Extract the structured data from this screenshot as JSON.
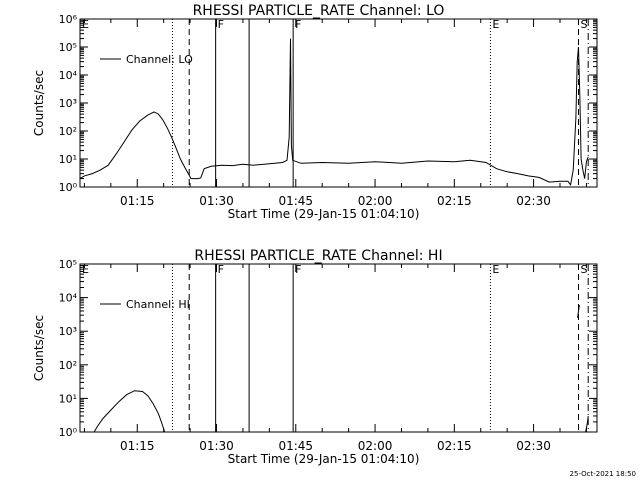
{
  "footer": {
    "timestamp": "25-Oct-2021 18:50"
  },
  "chart_data": [
    {
      "type": "line",
      "title": "RHESSI PARTICLE_RATE Channel: LO",
      "xlabel": "Start Time (29-Jan-15 01:04:10)",
      "ylabel": "Counts/sec",
      "y_scale": "log",
      "ylim": [
        1,
        1000000
      ],
      "y_ticks": [
        {
          "value": 1,
          "label": "10⁰"
        },
        {
          "value": 10,
          "label": "10¹"
        },
        {
          "value": 100,
          "label": "10²"
        },
        {
          "value": 1000,
          "label": "10³"
        },
        {
          "value": 10000,
          "label": "10⁴"
        },
        {
          "value": 100000,
          "label": "10⁵"
        },
        {
          "value": 1000000,
          "label": "10⁶"
        }
      ],
      "xlim": [
        "01:04:10",
        "02:42:00"
      ],
      "x_ticks": [
        "01:15",
        "01:30",
        "01:45",
        "02:00",
        "02:15",
        "02:30"
      ],
      "legend": {
        "label": "Channel: LO",
        "position": "top-left"
      },
      "markers": [
        {
          "time": "01:04:10",
          "style": "dotted",
          "label": "E"
        },
        {
          "time": "01:21:40",
          "style": "dotted",
          "label": ""
        },
        {
          "time": "01:24:50",
          "style": "dashed",
          "label": ""
        },
        {
          "time": "01:29:50",
          "style": "solid",
          "label": "F"
        },
        {
          "time": "01:36:10",
          "style": "solid",
          "label": ""
        },
        {
          "time": "01:44:30",
          "style": "solid",
          "label": "F"
        },
        {
          "time": "02:21:50",
          "style": "dotted",
          "label": "E"
        },
        {
          "time": "02:38:30",
          "style": "dashed",
          "label": "S"
        },
        {
          "time": "02:40:20",
          "style": "dashdot",
          "label": ""
        }
      ],
      "series": [
        {
          "name": "Channel: LO",
          "segments": [
            [
              [
                "01:04:10",
                2.0
              ],
              [
                "01:05:00",
                2.5
              ],
              [
                "01:06:30",
                3.0
              ],
              [
                "01:08:00",
                4.0
              ],
              [
                "01:09:30",
                6.0
              ],
              [
                "01:11:00",
                15
              ],
              [
                "01:12:30",
                40
              ],
              [
                "01:14:00",
                110
              ],
              [
                "01:15:30",
                230
              ],
              [
                "01:17:00",
                370
              ],
              [
                "01:18:10",
                480
              ],
              [
                "01:19:00",
                400
              ],
              [
                "01:19:50",
                250
              ],
              [
                "01:20:40",
                130
              ],
              [
                "01:21:30",
                60
              ],
              [
                "01:22:20",
                25
              ],
              [
                "01:23:10",
                10
              ],
              [
                "01:24:00",
                5.0
              ],
              [
                "01:24:40",
                3.0
              ],
              [
                "01:25:10",
                2.0
              ],
              [
                "01:26:30",
                2.0
              ],
              [
                "01:27:00",
                2.1
              ],
              [
                "01:27:40",
                4.5
              ],
              [
                "01:29:00",
                5.5
              ],
              [
                "01:31:00",
                6.0
              ],
              [
                "01:33:00",
                5.8
              ],
              [
                "01:35:00",
                6.5
              ],
              [
                "01:37:00",
                6.0
              ],
              [
                "01:39:00",
                6.5
              ],
              [
                "01:41:00",
                7.0
              ],
              [
                "01:42:30",
                7.5
              ],
              [
                "01:43:20",
                9.0
              ],
              [
                "01:43:45",
                60
              ],
              [
                "01:44:00",
                200000
              ],
              [
                "01:44:10",
                30
              ],
              [
                "01:44:25",
                9.0
              ],
              [
                "01:46:00",
                7.0
              ],
              [
                "01:50:00",
                7.5
              ],
              [
                "01:55:00",
                7.0
              ],
              [
                "02:00:00",
                8.0
              ],
              [
                "02:05:00",
                7.0
              ],
              [
                "02:10:00",
                8.5
              ],
              [
                "02:15:00",
                8.0
              ],
              [
                "02:18:00",
                9.0
              ],
              [
                "02:21:00",
                7.5
              ],
              [
                "02:23:00",
                4.5
              ],
              [
                "02:25:00",
                3.5
              ],
              [
                "02:27:00",
                3.0
              ],
              [
                "02:29:00",
                2.5
              ],
              [
                "02:31:00",
                2.2
              ],
              [
                "02:33:00",
                1.5
              ],
              [
                "02:35:00",
                1.6
              ],
              [
                "02:36:30",
                1.6
              ],
              [
                "02:37:00",
                1.2
              ],
              [
                "02:37:30",
                4.0
              ],
              [
                "02:38:00",
                300
              ],
              [
                "02:38:15",
                30000
              ],
              [
                "02:38:30",
                100000
              ],
              [
                "02:38:45",
                2000
              ],
              [
                "02:39:00",
                10
              ],
              [
                "02:39:20",
                4.0
              ],
              [
                "02:39:40",
                2.0
              ],
              [
                "02:40:00",
                8.0
              ],
              [
                "02:40:20",
                12
              ]
            ]
          ]
        }
      ]
    },
    {
      "type": "line",
      "title": "RHESSI PARTICLE_RATE Channel: HI",
      "xlabel": "Start Time (29-Jan-15 01:04:10)",
      "ylabel": "Counts/sec",
      "y_scale": "log",
      "ylim": [
        1,
        100000
      ],
      "y_ticks": [
        {
          "value": 1,
          "label": "10⁰"
        },
        {
          "value": 10,
          "label": "10¹"
        },
        {
          "value": 100,
          "label": "10²"
        },
        {
          "value": 1000,
          "label": "10³"
        },
        {
          "value": 10000,
          "label": "10⁴"
        },
        {
          "value": 100000,
          "label": "10⁵"
        }
      ],
      "xlim": [
        "01:04:10",
        "02:42:00"
      ],
      "x_ticks": [
        "01:15",
        "01:30",
        "01:45",
        "02:00",
        "02:15",
        "02:30"
      ],
      "legend": {
        "label": "Channel: HI",
        "position": "top-left"
      },
      "markers": [
        {
          "time": "01:04:10",
          "style": "dotted",
          "label": "E"
        },
        {
          "time": "01:21:40",
          "style": "dotted",
          "label": ""
        },
        {
          "time": "01:24:50",
          "style": "dashed",
          "label": ""
        },
        {
          "time": "01:29:50",
          "style": "solid",
          "label": "F"
        },
        {
          "time": "01:36:10",
          "style": "solid",
          "label": ""
        },
        {
          "time": "01:44:30",
          "style": "solid",
          "label": "F"
        },
        {
          "time": "02:21:50",
          "style": "dotted",
          "label": "E"
        },
        {
          "time": "02:38:30",
          "style": "dashed",
          "label": "S"
        },
        {
          "time": "02:40:20",
          "style": "dashdot",
          "label": ""
        }
      ],
      "series": [
        {
          "name": "Channel: HI",
          "segments": [
            [
              [
                "01:06:50",
                1.0
              ],
              [
                "01:07:30",
                1.5
              ],
              [
                "01:08:30",
                2.5
              ],
              [
                "01:10:00",
                4.5
              ],
              [
                "01:11:30",
                8.0
              ],
              [
                "01:13:00",
                13
              ],
              [
                "01:14:30",
                17
              ],
              [
                "01:16:00",
                16
              ],
              [
                "01:17:00",
                12
              ],
              [
                "01:18:00",
                7.0
              ],
              [
                "01:19:00",
                3.5
              ],
              [
                "01:19:40",
                1.8
              ],
              [
                "01:20:10",
                1.0
              ]
            ],
            [
              [
                "02:38:20",
                2500
              ],
              [
                "02:38:30",
                4000
              ],
              [
                "02:38:40",
                6000
              ]
            ],
            [
              [
                "02:39:50",
                1.0
              ],
              [
                "02:40:10",
                1.8
              ],
              [
                "02:40:20",
                3.0
              ]
            ]
          ]
        }
      ]
    }
  ]
}
